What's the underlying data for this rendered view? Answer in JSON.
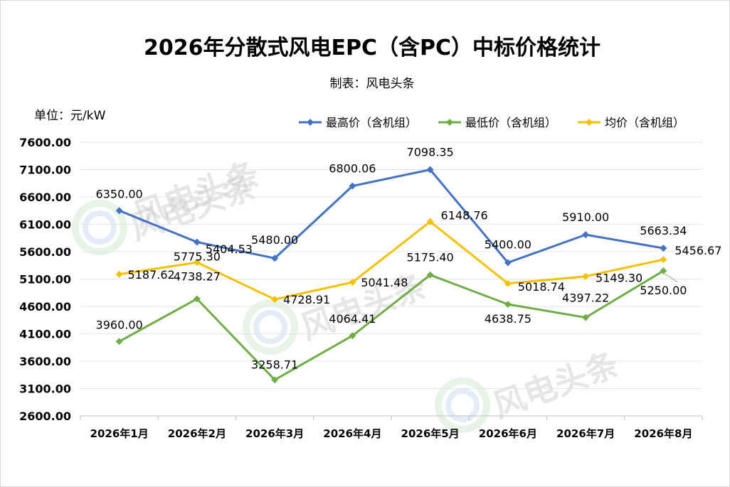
{
  "chart_data": {
    "type": "line",
    "title": "2026年分散式风电EPC（含PC）中标价格统计",
    "subtitle": "制表：风电头条",
    "unit_label": "单位：元/kW",
    "categories": [
      "2026年1月",
      "2026年2月",
      "2026年3月",
      "2026年4月",
      "2026年5月",
      "2026年6月",
      "2026年7月",
      "2026年8月"
    ],
    "y_ticks": [
      "2600.00",
      "3100.00",
      "3600.00",
      "4100.00",
      "4600.00",
      "5100.00",
      "5600.00",
      "6100.00",
      "6600.00",
      "7100.00",
      "7600.00"
    ],
    "ylim": [
      2600,
      7600
    ],
    "grid": true,
    "legend_position": "top-right",
    "series": [
      {
        "name": "最高价（含机组）",
        "color": "#4472c4",
        "values": [
          6350.0,
          5775.3,
          5480.0,
          6800.06,
          7098.35,
          5400.0,
          5910.0,
          5663.34
        ],
        "labels": [
          "6350.00",
          "5775.30",
          "5480.00",
          "6800.06",
          "7098.35",
          "5400.00",
          "5910.00",
          "5663.34"
        ]
      },
      {
        "name": "最低价（含机组）",
        "color": "#70ad47",
        "values": [
          3960.0,
          4738.27,
          3258.71,
          4064.41,
          5175.4,
          4638.75,
          4397.22,
          5250.0
        ],
        "labels": [
          "3960.00",
          "4738.27",
          "3258.71",
          "4064.41",
          "5175.40",
          "4638.75",
          "4397.22",
          "5250.00"
        ]
      },
      {
        "name": "均价（含机组）",
        "color": "#f5c000",
        "values": [
          5187.62,
          5404.53,
          4728.91,
          5041.48,
          6148.76,
          5018.74,
          5149.3,
          5456.67
        ],
        "labels": [
          "5187.62",
          "5404.53",
          "4728.91",
          "5041.48",
          "6148.76",
          "5018.74",
          "5149.30",
          "5456.67"
        ]
      }
    ],
    "watermark_text": "风电头条"
  }
}
